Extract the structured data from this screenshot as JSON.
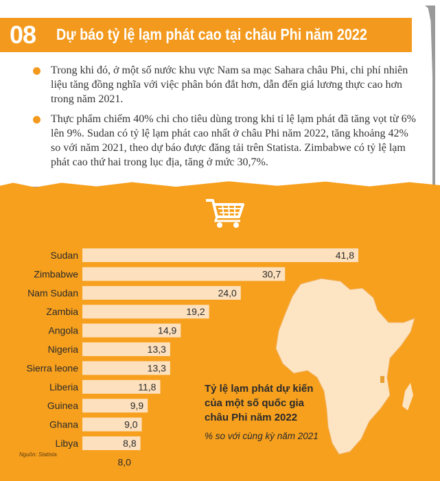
{
  "header": {
    "number": "08",
    "title": "Dự báo tỷ lệ lạm phát cao tại châu Phi năm 2022"
  },
  "bullets": [
    "Trong khi đó, ở một số nước khu vực Nam sa mạc Sahara châu Phi, chi phí nhiên liệu tăng đồng nghĩa với việc phân bón đắt hơn, dẫn đến giá lương thực cao hơn trong năm 2021.",
    "Thực phẩm chiếm 40% chi cho tiêu dùng trong khi tỉ lệ lạm phát đã tăng vọt từ 6% lên 9%. Sudan có tỷ lệ lạm phát cao nhất ở châu Phi năm 2022, tăng khoảng 42% so với năm 2021, theo dự báo được đăng tải trên Statista. Zimbabwe có tỷ lệ lạm phát cao thứ hai trong lục địa, tăng ở mức 30,7%."
  ],
  "icons": [
    "shopping-cart-icon",
    "africa-map-icon"
  ],
  "colors": {
    "accent": "#f39a1e",
    "panel": "#f7a01e",
    "bar": "#fde0bd",
    "text": "#333333"
  },
  "legend": {
    "title_line1": "Tỷ lệ lạm phát dự kiến",
    "title_line2": "của một số quốc gia",
    "title_line3": "châu Phi năm 2022",
    "subtitle": "% so với cùng kỳ năm 2021"
  },
  "source": "Nguồn: Statista",
  "chart_data": {
    "type": "bar",
    "orientation": "horizontal",
    "categories": [
      "Sudan",
      "Zimbabwe",
      "Nam Sudan",
      "Zambia",
      "Angola",
      "Nigeria",
      "Sierra leone",
      "Liberia",
      "Guinea",
      "Ghana",
      "Libya"
    ],
    "values": [
      41.8,
      30.7,
      24.0,
      19.2,
      14.9,
      13.3,
      13.3,
      11.8,
      9.9,
      9.0,
      8.8
    ],
    "value_labels": [
      "41,8",
      "30,7",
      "24,0",
      "19,2",
      "14,9",
      "13,3",
      "13,3",
      "11,8",
      "9,9",
      "9,0",
      "8,8"
    ],
    "extra_label": "8,0",
    "title": "Tỷ lệ lạm phát dự kiến của một số quốc gia châu Phi năm 2022",
    "subtitle": "% so với cùng kỳ năm 2021",
    "grid": false
  }
}
